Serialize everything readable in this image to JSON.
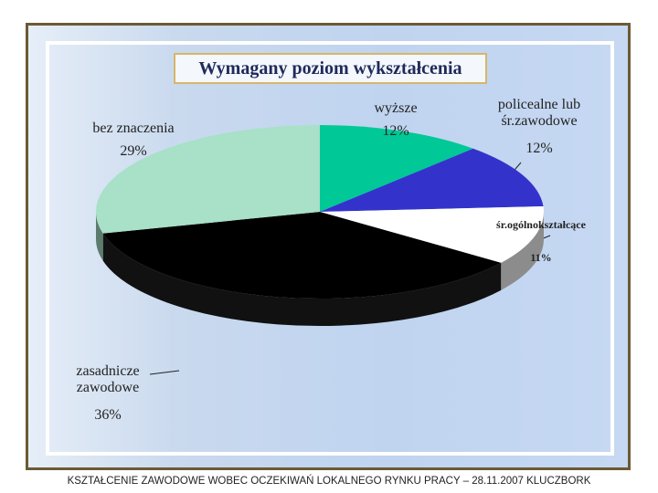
{
  "chart_data": {
    "type": "pie",
    "title": "Wymagany poziom wykształcenia",
    "categories": [
      "wyższe",
      "policealne lub śr.zawodowe",
      "śr.ogólnokształcące",
      "zasadnicze zawodowe",
      "bez znaczenia"
    ],
    "values": [
      12,
      12,
      11,
      36,
      29
    ],
    "value_labels": [
      "12%",
      "12%",
      "11%",
      "36%",
      "29%"
    ],
    "colors": [
      "#00c896",
      "#3333cc",
      "#ffffff",
      "#000000",
      "#a8e0c8"
    ]
  },
  "footer": "KSZTAŁCENIE ZAWODOWE WOBEC OCZEKIWAŃ LOKALNEGO RYNKU PRACY – 28.11.2007 KLUCZBORK"
}
